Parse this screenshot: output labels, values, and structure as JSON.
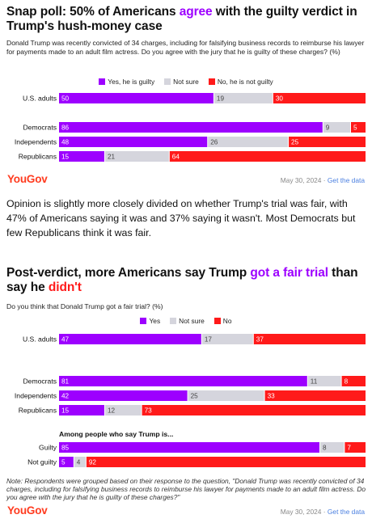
{
  "panel1": {
    "title_pre": "Snap poll: 50% of Americans ",
    "title_hl": "agree",
    "title_post": " with the guilty verdict in Trump's hush-money case",
    "question": "Donald Trump was recently convicted of 34 charges, including for falsifying business records to reimburse his lawyer for payments made to an adult film actress. Do you agree with the jury that he is guilty of these charges? (%)",
    "brand": "YouGov",
    "date": "May 30, 2024",
    "get_data": "Get the data"
  },
  "paragraph": "Opinion is slightly more closely divided on whether Trump's trial was fair, with 47% of Americans saying it was and 37% saying it wasn't. Most Democrats but few Republicans think it was fair.",
  "panel2": {
    "title_pre": "Post-verdict, more Americans say Trump ",
    "title_hl": "got a fair trial",
    "title_mid": " than say he ",
    "title_hl2": "didn't",
    "question": "Do you think that Donald Trump got a fair trial? (%)",
    "note": "Note: Respondents were grouped based on their response to the question, \"Donald Trump was recently convicted of 34 charges, including for falsifying business records to reimburse his lawyer for payments made to an adult film actress. Do you agree with the jury that he is guilty of these charges?\"",
    "brand": "YouGov",
    "date": "May 30, 2024",
    "get_data": "Get the data"
  },
  "colors": {
    "positive": "#9d00ff",
    "neutral": "#d5d5dd",
    "negative": "#ff1a1a",
    "brand": "#ff3b1f"
  },
  "chart_data": [
    {
      "type": "bar",
      "orientation": "horizontal",
      "stacked": true,
      "title": "Snap poll: 50% of Americans agree with the guilty verdict in Trump's hush-money case",
      "series_names": [
        "Yes, he is guilty",
        "Not sure",
        "No, he is not guilty"
      ],
      "groups": [
        {
          "rows": [
            {
              "label": "U.S. adults",
              "values": [
                50,
                19,
                30
              ]
            }
          ]
        },
        {
          "rows": [
            {
              "label": "Democrats",
              "values": [
                86,
                9,
                5
              ]
            },
            {
              "label": "Independents",
              "values": [
                48,
                26,
                25
              ]
            },
            {
              "label": "Republicans",
              "values": [
                15,
                21,
                64
              ]
            }
          ]
        }
      ]
    },
    {
      "type": "bar",
      "orientation": "horizontal",
      "stacked": true,
      "title": "Post-verdict, more Americans say Trump got a fair trial than say he didn't",
      "series_names": [
        "Yes",
        "Not sure",
        "No"
      ],
      "groups": [
        {
          "rows": [
            {
              "label": "U.S. adults",
              "values": [
                47,
                17,
                37
              ]
            }
          ]
        },
        {
          "rows": [
            {
              "label": "Democrats",
              "values": [
                81,
                11,
                8
              ]
            },
            {
              "label": "Independents",
              "values": [
                42,
                25,
                33
              ]
            },
            {
              "label": "Republicans",
              "values": [
                15,
                12,
                73
              ]
            }
          ]
        },
        {
          "header": "Among people who say Trump is...",
          "rows": [
            {
              "label": "Guilty",
              "values": [
                85,
                8,
                7
              ]
            },
            {
              "label": "Not guilty",
              "values": [
                5,
                4,
                92
              ]
            }
          ]
        }
      ]
    }
  ]
}
